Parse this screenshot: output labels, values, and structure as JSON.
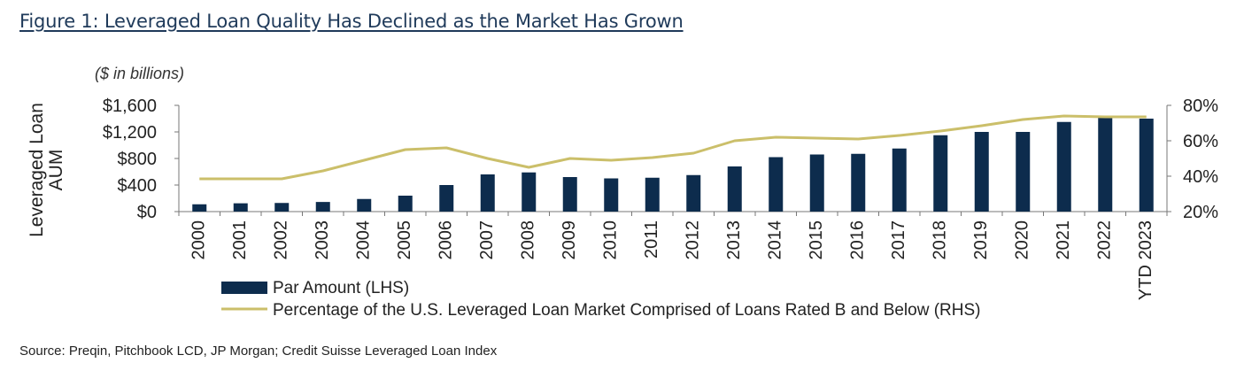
{
  "figure": {
    "title": "Figure 1: Leveraged Loan Quality Has Declined as the Market Has Grown",
    "unit_note": "($ in billions)",
    "source": "Source: Preqin, Pitchbook LCD, JP Morgan; Credit Suisse Leveraged Loan Index"
  },
  "chart_data": {
    "type": "bar",
    "categories": [
      "2000",
      "2001",
      "2002",
      "2003",
      "2004",
      "2005",
      "2006",
      "2007",
      "2008",
      "2009",
      "2010",
      "2011",
      "2012",
      "2013",
      "2014",
      "2015",
      "2016",
      "2017",
      "2018",
      "2019",
      "2020",
      "2021",
      "2022",
      "YTD 2023"
    ],
    "ylabel": "Leveraged Loan AUM",
    "ylim": [
      0,
      1600
    ],
    "y_ticks": [
      0,
      400,
      800,
      1200,
      1600
    ],
    "y_tick_labels": [
      "$0",
      "$400",
      "$800",
      "$1,200",
      "$1,600"
    ],
    "y2lim": [
      20,
      80
    ],
    "y2_ticks": [
      20,
      40,
      60,
      80
    ],
    "y2_tick_labels": [
      "20%",
      "40%",
      "60%",
      "80%"
    ],
    "series": [
      {
        "name": "Par Amount (LHS)",
        "type": "bar",
        "axis": "left",
        "color": "#0d2c4d",
        "values": [
          110,
          125,
          130,
          145,
          190,
          240,
          400,
          560,
          590,
          520,
          500,
          510,
          550,
          680,
          820,
          860,
          870,
          950,
          1150,
          1200,
          1200,
          1350,
          1420,
          1400
        ]
      },
      {
        "name": "Percentage of the U.S. Leveraged Loan Market Comprised of Loans Rated B and Below (RHS)",
        "type": "line",
        "axis": "right",
        "color": "#cbbf6a",
        "values": [
          38.5,
          38.5,
          38.5,
          43,
          49,
          55,
          56,
          50,
          45,
          50,
          49,
          50.5,
          53,
          60,
          62,
          61.5,
          61,
          63,
          65.5,
          68.5,
          72,
          74,
          73.5,
          73.5
        ]
      }
    ],
    "legend_position": "bottom",
    "grid": false
  }
}
